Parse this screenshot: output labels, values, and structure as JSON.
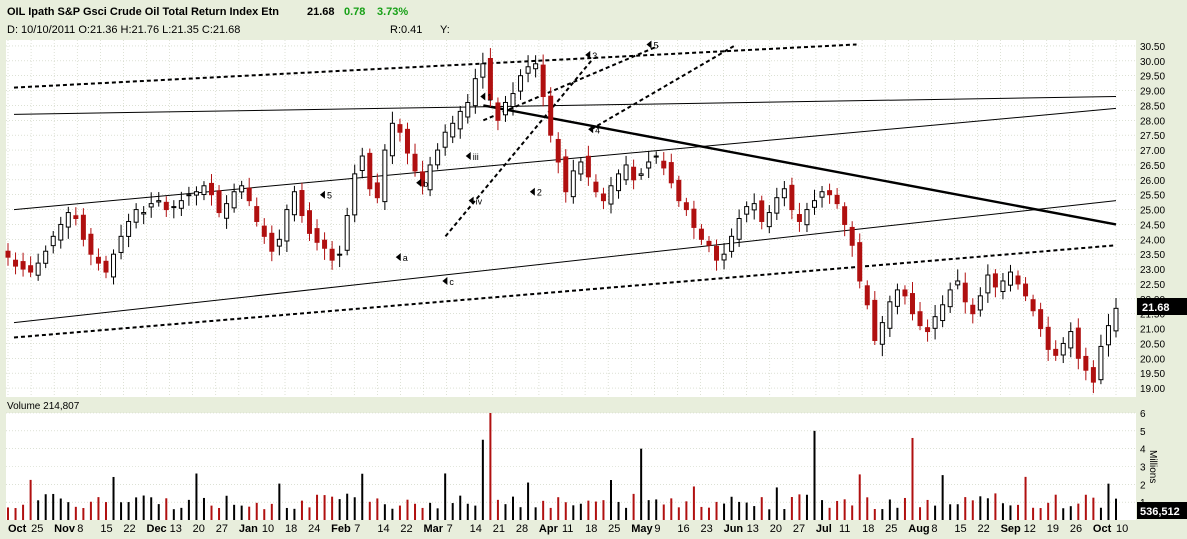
{
  "header": {
    "title": "OIL Ipath S&P Gsci Crude Oil Total Return Index Etn",
    "last": "21.68",
    "change": "0.78",
    "change_pct": "3.73%",
    "ohlc": "D: 10/10/2011 O:21.36 H:21.76 L:21.35 C:21.68",
    "r": "R:0.41",
    "y": "Y:"
  },
  "volume_header": "Volume 214,807",
  "last_price_tag": "21.68",
  "last_volume_tag": "536,512",
  "colors": {
    "up": "#000000",
    "down": "#b01010",
    "background": "#e8eedc",
    "grid": "#c8cfbc"
  },
  "chart_data": {
    "type": "candlestick",
    "price_axis": {
      "range": [
        18.7,
        30.7
      ],
      "ticks": [
        "19.00",
        "19.50",
        "20.00",
        "20.50",
        "21.00",
        "21.50",
        "22.00",
        "22.50",
        "23.00",
        "23.50",
        "24.00",
        "24.50",
        "25.00",
        "25.50",
        "26.00",
        "26.50",
        "27.00",
        "27.50",
        "28.00",
        "28.50",
        "29.00",
        "29.50",
        "30.00",
        "30.50"
      ]
    },
    "volume_axis": {
      "label": "Millions",
      "range": [
        0,
        6
      ],
      "ticks": [
        "1",
        "2",
        "3",
        "4",
        "5",
        "6"
      ]
    },
    "x_ticks": [
      "Oct",
      "25",
      "Nov",
      "8",
      "15",
      "22",
      "Dec",
      "13",
      "20",
      "27",
      "Jan",
      "10",
      "18",
      "24",
      "Feb",
      "7",
      "14",
      "22",
      "Mar",
      "7",
      "14",
      "21",
      "28",
      "Apr",
      "11",
      "18",
      "25",
      "May",
      "9",
      "16",
      "23",
      "Jun",
      "13",
      "20",
      "27",
      "Jul",
      "11",
      "18",
      "25",
      "Aug",
      "8",
      "15",
      "22",
      "Sep",
      "12",
      "19",
      "26",
      "Oct",
      "10"
    ],
    "closes_approx": [
      23.4,
      23.1,
      23.0,
      22.9,
      23.2,
      23.6,
      24.1,
      24.5,
      24.9,
      24.7,
      24.0,
      23.5,
      23.2,
      22.9,
      23.5,
      24.1,
      24.6,
      25.0,
      24.9,
      25.2,
      25.3,
      25.0,
      25.1,
      25.3,
      25.5,
      25.6,
      25.8,
      25.5,
      24.9,
      25.2,
      25.6,
      25.8,
      25.3,
      24.6,
      24.1,
      23.6,
      24.0,
      25.0,
      25.6,
      24.8,
      24.2,
      23.9,
      23.7,
      23.3,
      23.5,
      24.8,
      26.2,
      26.8,
      25.7,
      25.4,
      27.0,
      27.9,
      27.6,
      26.9,
      26.3,
      25.8,
      26.5,
      27.0,
      27.6,
      27.9,
      28.3,
      28.6,
      29.4,
      29.9,
      28.7,
      28.0,
      28.6,
      28.9,
      29.5,
      29.8,
      29.9,
      28.8,
      27.5,
      26.6,
      25.6,
      26.3,
      26.6,
      26.1,
      25.6,
      25.3,
      25.8,
      26.2,
      26.5,
      26.0,
      26.2,
      26.6,
      26.8,
      26.4,
      25.9,
      25.3,
      25.0,
      24.4,
      24.0,
      23.8,
      23.3,
      23.5,
      24.1,
      24.7,
      25.1,
      25.2,
      24.6,
      24.9,
      25.4,
      25.7,
      25.0,
      24.6,
      25.0,
      25.3,
      25.6,
      25.5,
      25.2,
      24.5,
      23.8,
      22.6,
      21.8,
      20.6,
      21.2,
      21.9,
      22.3,
      22.1,
      21.5,
      21.1,
      20.9,
      21.4,
      21.8,
      22.3,
      22.6,
      21.9,
      21.5,
      22.1,
      22.8,
      22.4,
      22.6,
      22.9,
      22.5,
      22.1,
      21.6,
      21.0,
      20.3,
      20.1,
      20.5,
      20.9,
      20.0,
      19.6,
      19.2,
      20.4,
      21.1,
      21.68
    ],
    "trendlines": [
      {
        "style": "dashed",
        "from": [
          "2010-09-27",
          29.1
        ],
        "to": [
          "2011-07-13",
          30.55
        ]
      },
      {
        "style": "solid",
        "from": [
          "2010-09-27",
          28.2
        ],
        "to": [
          "2011-10-10",
          28.8
        ]
      },
      {
        "style": "solid",
        "from": [
          "2010-09-27",
          25.0
        ],
        "to": [
          "2011-10-10",
          28.4
        ]
      },
      {
        "style": "solid",
        "from": [
          "2010-09-27",
          21.2
        ],
        "to": [
          "2011-10-10",
          25.3
        ]
      },
      {
        "style": "dashed",
        "from": [
          "2010-09-27",
          20.7
        ],
        "to": [
          "2011-10-10",
          23.8
        ]
      },
      {
        "style": "heavy",
        "from": [
          "2011-03-07",
          28.5
        ],
        "to": [
          "2011-10-10",
          24.5
        ]
      },
      {
        "style": "dashed",
        "from": [
          "2011-03-07",
          28.0
        ],
        "to": [
          "2011-05-06",
          30.5
        ]
      },
      {
        "style": "dashed",
        "from": [
          "2011-02-22",
          24.1
        ],
        "to": [
          "2011-04-13",
          30.0
        ]
      },
      {
        "style": "dashed",
        "from": [
          "2011-04-13",
          27.7
        ],
        "to": [
          "2011-06-01",
          30.5
        ]
      }
    ],
    "annotations": [
      "5",
      "b",
      "a",
      "c",
      "iii",
      "iv",
      "1",
      "2",
      "3",
      "4",
      "5"
    ]
  }
}
